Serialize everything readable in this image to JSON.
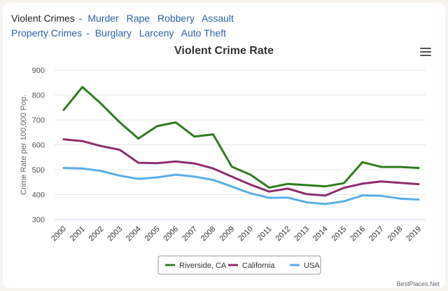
{
  "nav": {
    "violent_label": "Violent Crimes",
    "violent_sep": "-",
    "violent_links": [
      "Murder",
      "Rape",
      "Robbery",
      "Assault"
    ],
    "property_label": "Property Crimes",
    "property_sep": "-",
    "property_links": [
      "Burglary",
      "Larceny",
      "Auto Theft"
    ]
  },
  "menu_icon": "hamburger-menu-icon",
  "credit": "BestPlaces.Net",
  "chart_data": {
    "type": "line",
    "title": "Violent Crime Rate",
    "ylabel": "Crime Rate per 100,000 Pop.",
    "xlabel": "",
    "x": [
      "2000",
      "2001",
      "2002",
      "2003",
      "2004",
      "2005",
      "2006",
      "2007",
      "2008",
      "2009",
      "2010",
      "2011",
      "2012",
      "2013",
      "2014",
      "2015",
      "2016",
      "2017",
      "2018",
      "2019"
    ],
    "ylim": [
      300,
      900
    ],
    "yticks": [
      300,
      400,
      500,
      600,
      700,
      800,
      900
    ],
    "grid": true,
    "legend_position": "bottom",
    "series": [
      {
        "name": "Riverside, CA",
        "color": "#2e7d1e",
        "values": [
          740,
          832,
          765,
          690,
          625,
          675,
          690,
          633,
          642,
          512,
          480,
          428,
          443,
          438,
          433,
          446,
          530,
          511,
          511,
          507
        ]
      },
      {
        "name": "California",
        "color": "#8b2f6e",
        "values": [
          622,
          615,
          595,
          580,
          528,
          526,
          533,
          525,
          505,
          472,
          440,
          412,
          424,
          402,
          396,
          427,
          444,
          453,
          447,
          442
        ]
      },
      {
        "name": "USA",
        "color": "#5aaee8",
        "values": [
          507,
          505,
          495,
          476,
          463,
          469,
          480,
          472,
          459,
          432,
          405,
          387,
          388,
          369,
          362,
          373,
          397,
          395,
          384,
          380
        ]
      }
    ]
  }
}
